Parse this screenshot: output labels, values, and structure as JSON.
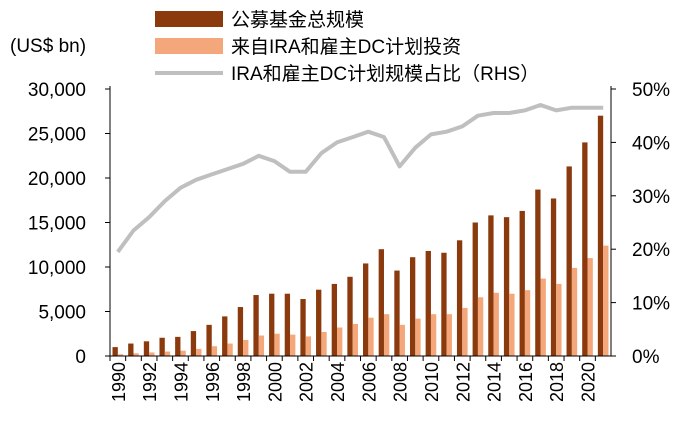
{
  "chart_data": {
    "type": "bar",
    "unit_label": "(US$ bn)",
    "categories": [
      "1990",
      "1991",
      "1992",
      "1993",
      "1994",
      "1995",
      "1996",
      "1997",
      "1998",
      "1999",
      "2000",
      "2001",
      "2002",
      "2003",
      "2004",
      "2005",
      "2006",
      "2007",
      "2008",
      "2009",
      "2010",
      "2011",
      "2012",
      "2013",
      "2014",
      "2015",
      "2016",
      "2017",
      "2018",
      "2019",
      "2020",
      "2021"
    ],
    "series": [
      {
        "name": "公募基金总规模",
        "type": "bar",
        "axis": "left",
        "color": "#8B3A0E",
        "values": [
          1000,
          1400,
          1650,
          2050,
          2150,
          2800,
          3500,
          4450,
          5500,
          6850,
          7000,
          7000,
          6400,
          7450,
          8100,
          8900,
          10400,
          12000,
          9600,
          11100,
          11800,
          11600,
          13000,
          15000,
          15800,
          15600,
          16300,
          18700,
          17700,
          21300,
          24000,
          27000
        ]
      },
      {
        "name": "来自IRA和雇主DC计划投资",
        "type": "bar",
        "axis": "left",
        "color": "#F4A77A",
        "values": [
          200,
          300,
          400,
          500,
          600,
          800,
          1100,
          1400,
          1800,
          2300,
          2500,
          2400,
          2200,
          2700,
          3200,
          3600,
          4300,
          4700,
          3500,
          4200,
          4700,
          4700,
          5400,
          6600,
          7100,
          7000,
          7400,
          8700,
          8100,
          9900,
          11000,
          12400
        ]
      },
      {
        "name": "IRA和雇主DC计划规模占比（RHS）",
        "type": "line",
        "axis": "right",
        "color": "#BFBFBF",
        "values": [
          19.5,
          23.5,
          26,
          29,
          31.5,
          33,
          34,
          35,
          36,
          37.5,
          36.5,
          34.5,
          34.5,
          38,
          40,
          41,
          42,
          41,
          35.5,
          39,
          41.5,
          42,
          43,
          45,
          45.5,
          45.5,
          46,
          47,
          46,
          46.5,
          46.5,
          46.5
        ]
      }
    ],
    "left_axis": {
      "min": 0,
      "max": 30000,
      "ticks": [
        "0",
        "5,000",
        "10,000",
        "15,000",
        "20,000",
        "25,000",
        "30,000"
      ]
    },
    "right_axis": {
      "min": 0,
      "max": 50,
      "ticks": [
        "0%",
        "10%",
        "20%",
        "30%",
        "40%",
        "50%"
      ]
    },
    "x_tick_labels": [
      "1990",
      "1992",
      "1994",
      "1996",
      "1998",
      "2000",
      "2002",
      "2004",
      "2006",
      "2008",
      "2010",
      "2012",
      "2014",
      "2016",
      "2018",
      "2020"
    ],
    "legend_position": "top"
  }
}
